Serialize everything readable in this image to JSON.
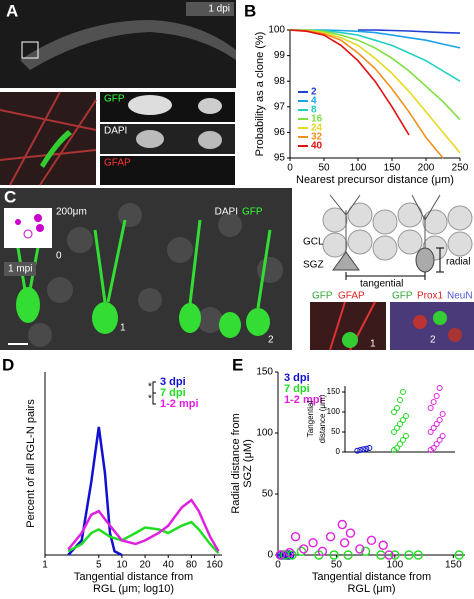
{
  "panels": {
    "A": {
      "label": "A",
      "badge": "1 dpi",
      "stains": [
        "GFP",
        "DAPI",
        "GFAP"
      ]
    },
    "B": {
      "label": "B"
    },
    "C": {
      "label": "C",
      "scale": "200μm",
      "stains": [
        "DAPI",
        "GFP"
      ],
      "inset_zero": "0",
      "inset_time": "1 mpi",
      "cells": [
        "1",
        "2"
      ],
      "diagram": [
        "GCL",
        "SGZ",
        "tangential",
        "radial"
      ],
      "sub1": [
        "GFP",
        "GFAP"
      ],
      "sub2": [
        "GFP",
        "Prox1",
        "NeuN"
      ]
    },
    "D": {
      "label": "D"
    },
    "E": {
      "label": "E"
    }
  },
  "chart_data": [
    {
      "type": "line",
      "xlim": [
        0,
        250
      ],
      "xticks": [
        0,
        50,
        100,
        150,
        200,
        250
      ],
      "ylim": [
        95,
        100
      ],
      "yticks": [
        95,
        96,
        97,
        98,
        99,
        100
      ],
      "xlabel": [
        "Nearest precursor distance (μm)"
      ],
      "ylabel": [
        "Probability as a clone (%)"
      ],
      "x": [
        0,
        25,
        50,
        75,
        100,
        125,
        150,
        175,
        200,
        225,
        250
      ],
      "series": [
        {
          "name": "2",
          "color": "#1f3fd6",
          "values": [
            null,
            null,
            null,
            null,
            100,
            100,
            99.98,
            99.96,
            99.93,
            99.9,
            99.88
          ]
        },
        {
          "name": "4",
          "color": "#1aa3e8",
          "values": [
            100,
            100,
            100,
            99.98,
            99.95,
            99.9,
            99.8,
            99.7,
            99.6,
            99.45,
            99.3
          ]
        },
        {
          "name": "8",
          "color": "#20d0c0",
          "values": [
            100,
            100,
            99.98,
            99.9,
            99.8,
            99.6,
            99.4,
            99.1,
            98.8,
            98.4,
            98.0
          ]
        },
        {
          "name": "16",
          "color": "#7ee040",
          "values": [
            100,
            100,
            99.95,
            99.8,
            99.6,
            99.3,
            98.9,
            98.4,
            97.8,
            97.2,
            96.5
          ]
        },
        {
          "name": "24",
          "color": "#e8d820",
          "values": [
            100,
            99.98,
            99.9,
            99.7,
            99.4,
            98.9,
            98.3,
            97.6,
            96.8,
            96.0,
            95.2
          ]
        },
        {
          "name": "32",
          "color": "#f39020",
          "values": [
            100,
            99.97,
            99.85,
            99.6,
            99.1,
            98.5,
            97.7,
            96.8,
            95.8,
            95.0,
            null
          ]
        },
        {
          "name": "40",
          "color": "#e01010",
          "values": [
            100,
            99.95,
            99.8,
            99.4,
            98.8,
            98.0,
            97.0,
            95.9,
            null,
            null,
            null
          ]
        }
      ]
    },
    {
      "type": "line",
      "xscale": "log",
      "xlim": [
        1,
        200
      ],
      "xticks": [
        1,
        5,
        10,
        20,
        40,
        80,
        160
      ],
      "ylim": [
        0,
        100
      ],
      "xlabel": [
        "Tangential distance from",
        "RGL (μm; log10)"
      ],
      "ylabel": [
        "Percent of all RGL-N pairs"
      ],
      "annotations": [
        "*",
        "*"
      ],
      "series": [
        {
          "name": "3 dpi",
          "color": "#1010d0",
          "x": [
            2,
            3,
            4,
            5,
            6,
            7,
            8,
            10
          ],
          "values": [
            0,
            8,
            40,
            70,
            45,
            12,
            2,
            0
          ]
        },
        {
          "name": "7 dpi",
          "color": "#22dd22",
          "x": [
            2,
            3,
            4,
            5,
            7,
            10,
            15,
            20,
            30,
            40,
            60,
            80,
            100,
            140,
            180
          ],
          "values": [
            2,
            6,
            12,
            14,
            10,
            8,
            12,
            15,
            14,
            12,
            16,
            18,
            14,
            6,
            1
          ]
        },
        {
          "name": "1-2 mpi",
          "color": "#e020e0",
          "x": [
            2,
            3,
            4,
            5,
            7,
            10,
            15,
            20,
            30,
            40,
            60,
            80,
            100,
            140,
            180
          ],
          "values": [
            3,
            12,
            22,
            24,
            16,
            8,
            6,
            8,
            12,
            16,
            26,
            30,
            24,
            10,
            2
          ]
        }
      ]
    },
    {
      "type": "scatter",
      "xlim": [
        0,
        160
      ],
      "xticks": [
        0,
        50,
        100,
        150
      ],
      "ylim": [
        0,
        150
      ],
      "yticks": [
        0,
        50,
        100,
        150
      ],
      "xlabel": [
        "Tangential distance from",
        "RGL (μm)"
      ],
      "ylabel": [
        "Radial distance from",
        "SGZ (μM)"
      ],
      "series": [
        {
          "name": "3 dpi",
          "color": "#1010d0",
          "x": [
            3,
            5,
            7,
            8,
            10
          ],
          "values": [
            0,
            0,
            0,
            0,
            0
          ]
        },
        {
          "name": "7 dpi",
          "color": "#22dd22",
          "x": [
            2,
            6,
            12,
            20,
            35,
            48,
            60,
            75,
            88,
            100,
            112,
            120,
            155
          ],
          "values": [
            0,
            0,
            0,
            3,
            0,
            0,
            0,
            3,
            0,
            0,
            0,
            0,
            0
          ]
        },
        {
          "name": "1-2 mpi",
          "color": "#e020e0",
          "x": [
            2,
            10,
            15,
            22,
            30,
            38,
            45,
            55,
            57,
            62,
            70,
            80,
            90,
            95
          ],
          "values": [
            0,
            2,
            15,
            5,
            10,
            3,
            15,
            25,
            10,
            18,
            5,
            12,
            8,
            0
          ]
        }
      ]
    },
    {
      "type": "strip",
      "ylim": [
        0,
        165
      ],
      "yticks": [
        0,
        50,
        100,
        150
      ],
      "ylabel": [
        "Tangential",
        "distance (μm)"
      ],
      "series": [
        {
          "color": "#1010d0",
          "values": [
            3,
            5,
            7,
            8,
            10
          ]
        },
        {
          "color": "#22dd22",
          "values": [
            5,
            10,
            20,
            30,
            40,
            50,
            60,
            70,
            80,
            90,
            100,
            110,
            130,
            150
          ]
        },
        {
          "color": "#e020e0",
          "values": [
            5,
            10,
            20,
            30,
            40,
            50,
            60,
            70,
            80,
            95,
            110,
            125,
            140,
            160
          ]
        }
      ]
    }
  ]
}
